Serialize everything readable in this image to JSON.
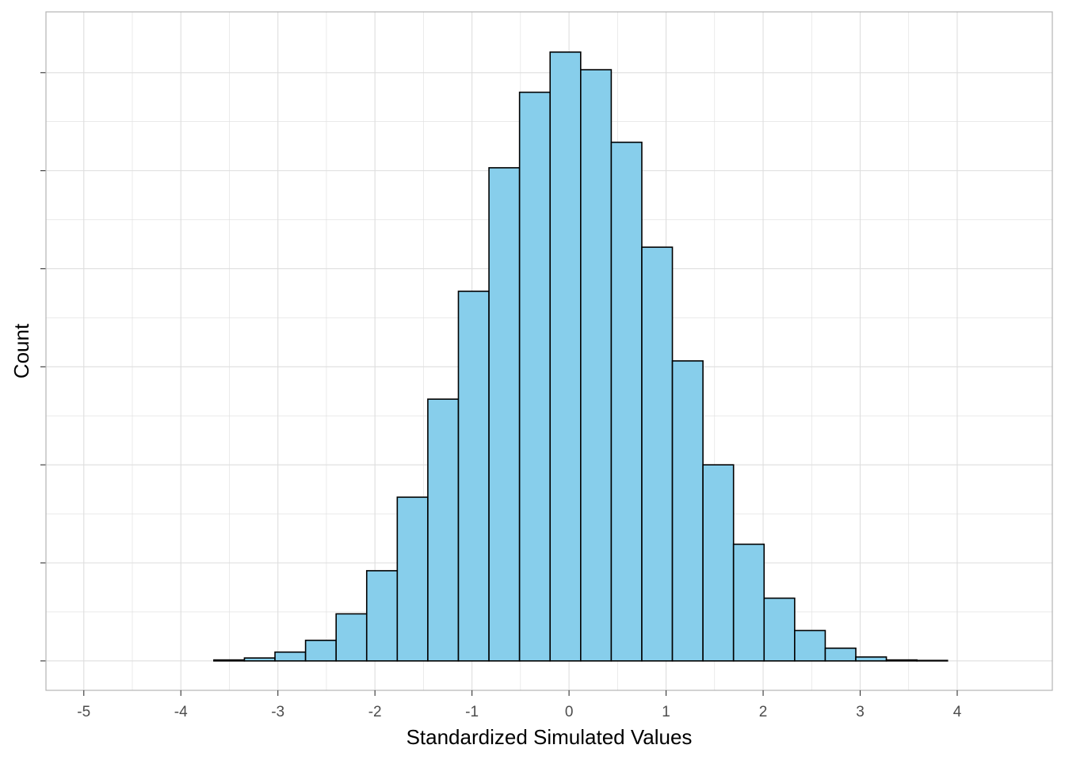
{
  "chart_data": {
    "type": "bar",
    "xlabel": "Standardized Simulated Values",
    "ylabel": "Count",
    "x_ticks": [
      -5,
      -4,
      -3,
      -2,
      -1,
      0,
      1,
      2,
      3,
      4
    ],
    "x_tick_labels": [
      "-5",
      "-4",
      "-3",
      "-2",
      "-1",
      "0",
      "1",
      "2",
      "3",
      "4"
    ],
    "xlim": [
      -5.39,
      4.98
    ],
    "bin_width": 0.315,
    "bin_starts": [
      -4.92,
      -4.605,
      -4.29,
      -3.975,
      -3.66,
      -3.345,
      -3.03,
      -2.715,
      -2.4,
      -2.085,
      -1.77,
      -1.455,
      -1.14,
      -0.825,
      -0.51,
      -0.195,
      0.12,
      0.435,
      0.75,
      1.065,
      1.38,
      1.695,
      2.01,
      2.325,
      2.64,
      2.955,
      3.27,
      3.585,
      3.9,
      4.215
    ],
    "values": [
      0,
      0,
      0,
      0,
      1,
      3,
      9,
      21,
      48,
      92,
      167,
      267,
      377,
      503,
      580,
      621,
      603,
      529,
      422,
      306,
      200,
      119,
      64,
      31,
      13,
      4,
      1,
      0.5,
      0,
      0
    ],
    "ylim": [
      -30,
      662
    ],
    "y_gridlines": [
      0,
      100,
      200,
      300,
      400,
      500,
      600
    ],
    "grid": true,
    "legend": "none",
    "colors": {
      "bar_fill": "#87CEEB",
      "bar_stroke": "#000000",
      "grid": "#dedede",
      "panel_border": "#b3b3b3"
    }
  }
}
